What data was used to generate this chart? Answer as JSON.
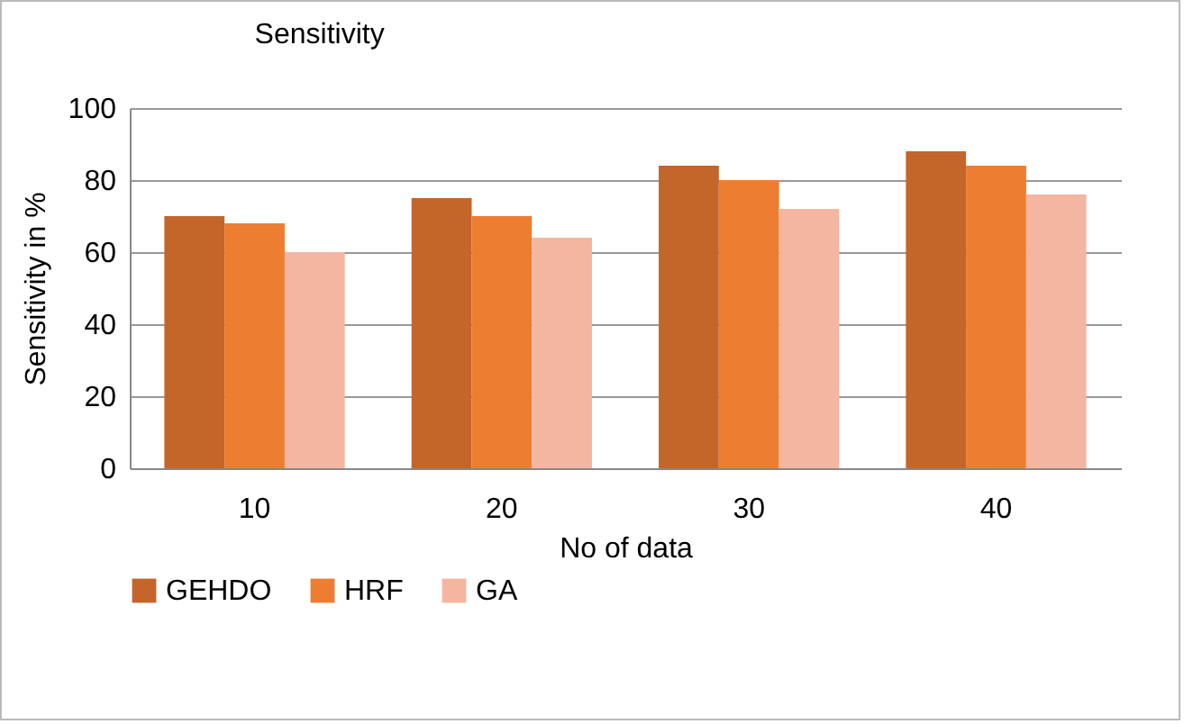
{
  "chart_data": {
    "type": "bar",
    "title": "Sensitivity",
    "xlabel": "No of data",
    "ylabel": "Sensitivity in %",
    "categories": [
      "10",
      "20",
      "30",
      "40"
    ],
    "series": [
      {
        "name": "GEHDO",
        "color": "#c4652a",
        "values": [
          70,
          75,
          84,
          88
        ]
      },
      {
        "name": "HRF",
        "color": "#ed7d31",
        "values": [
          68,
          70,
          80,
          84
        ]
      },
      {
        "name": "GA",
        "color": "#f4b6a0",
        "values": [
          60,
          64,
          72,
          76
        ]
      }
    ],
    "ylim": [
      0,
      100
    ],
    "yticks": [
      0,
      20,
      40,
      60,
      80,
      100
    ],
    "grid": "y",
    "legend": "bottom"
  }
}
